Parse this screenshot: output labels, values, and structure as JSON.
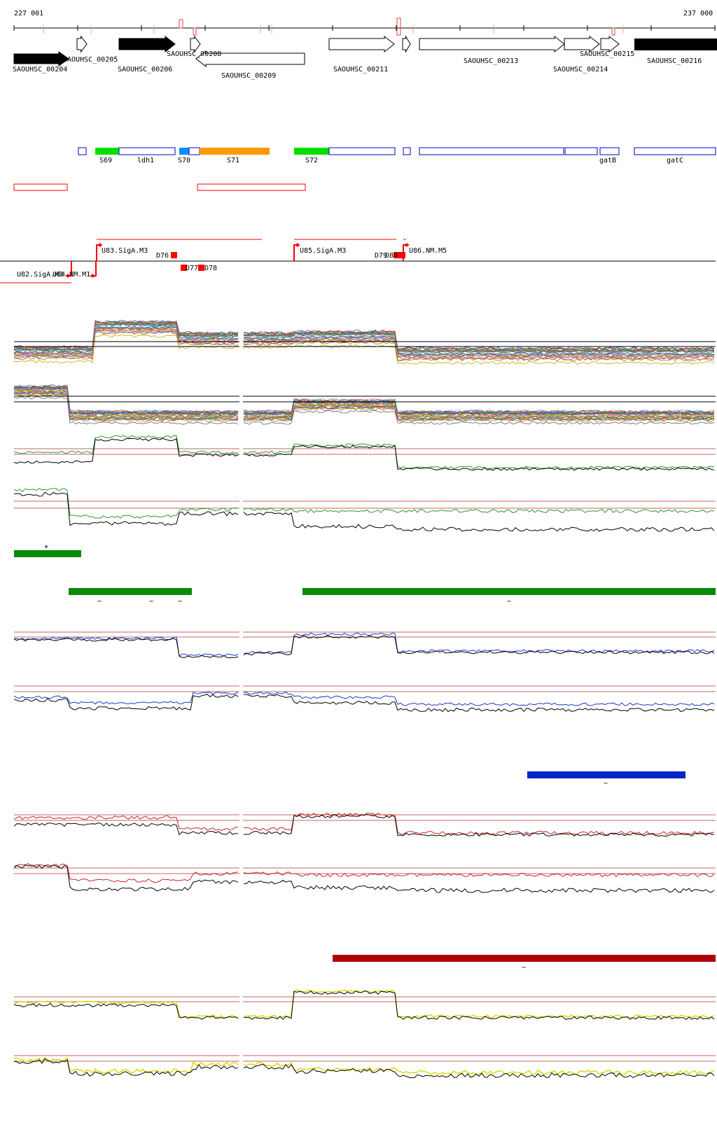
{
  "coordinate_start": "227 001",
  "coordinate_end": "237 000",
  "genes_top": [
    {
      "name": "SAOUHSC_00205"
    },
    {
      "name": "SAOUHSC_00208"
    },
    {
      "name": "SAOUHSC_00213"
    },
    {
      "name": "SAOUHSC_00215"
    },
    {
      "name": "SAOUHSC_00216"
    }
  ],
  "genes_bottom": [
    {
      "name": "SAOUHSC_00204"
    },
    {
      "name": "SAOUHSC_00206"
    },
    {
      "name": "SAOUHSC_00209"
    },
    {
      "name": "SAOUHSC_00211"
    },
    {
      "name": "SAOUHSC_00214"
    }
  ],
  "features": [
    {
      "label": "S69",
      "color": "#00e000"
    },
    {
      "label": "ldh1",
      "color": "#ffffff"
    },
    {
      "label": "S70",
      "color": "#0090ff"
    },
    {
      "label": "S71",
      "color": "#ff9900"
    },
    {
      "label": "S72",
      "color": "#00e000"
    },
    {
      "label": "gatB",
      "color": "#ffffff"
    },
    {
      "label": "gatC",
      "color": "#ffffff"
    }
  ],
  "promoters_top": [
    {
      "label": "U83.SigA.M3"
    },
    {
      "label": "U85.SigA.M3"
    },
    {
      "label": "U86.NM.M5"
    }
  ],
  "terminators": [
    {
      "label": "D76"
    },
    {
      "label": "D77"
    },
    {
      "label": "D78"
    },
    {
      "label": "D79"
    },
    {
      "label": "D80"
    }
  ],
  "promoters_bottom": [
    {
      "label": "U82.SigA.M3"
    },
    {
      "label": "U84.NM.M1"
    }
  ],
  "segment_marks": [
    {
      "sign": "+"
    },
    {
      "sign": "−"
    },
    {
      "sign": "−"
    },
    {
      "sign": "−"
    },
    {
      "sign": "−"
    },
    {
      "sign": "−"
    },
    {
      "sign": "−"
    }
  ],
  "colors": {
    "gene_outline": "#000000",
    "feature_outline": "#0000cc",
    "red_track": "#ff0000",
    "green_series": "#2a9a2a",
    "blue_series": "#1a3acc",
    "red_series": "#cc2222",
    "yellow_series": "#d8d800",
    "green_bar": "#0a8a0a",
    "blue_bar": "#0026c8",
    "red_bar": "#b00000"
  }
}
